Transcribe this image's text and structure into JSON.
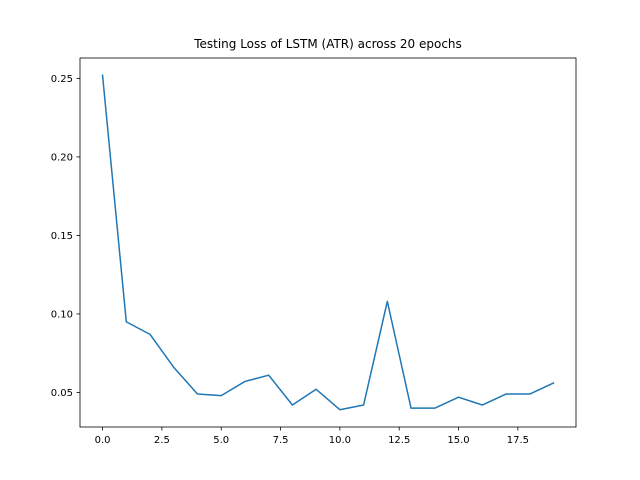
{
  "chart_data": {
    "type": "line",
    "title": "Testing Loss of LSTM (ATR) across 20 epochs",
    "xlabel": "",
    "ylabel": "",
    "xlim": [
      -0.95,
      19.95
    ],
    "ylim": [
      0.028,
      0.263
    ],
    "xticks": [
      "0.0",
      "2.5",
      "5.0",
      "7.5",
      "10.0",
      "12.5",
      "15.0",
      "17.5"
    ],
    "yticks": [
      "0.05",
      "0.10",
      "0.15",
      "0.20",
      "0.25"
    ],
    "grid": false,
    "series": [
      {
        "color": "#1f77b4",
        "x": [
          0,
          1,
          2,
          3,
          4,
          5,
          6,
          7,
          8,
          9,
          10,
          11,
          12,
          13,
          14,
          15,
          16,
          17,
          18,
          19
        ],
        "y": [
          0.252,
          0.095,
          0.087,
          0.066,
          0.049,
          0.048,
          0.057,
          0.061,
          0.042,
          0.052,
          0.039,
          0.042,
          0.108,
          0.04,
          0.04,
          0.047,
          0.042,
          0.049,
          0.049,
          0.056
        ]
      }
    ]
  }
}
